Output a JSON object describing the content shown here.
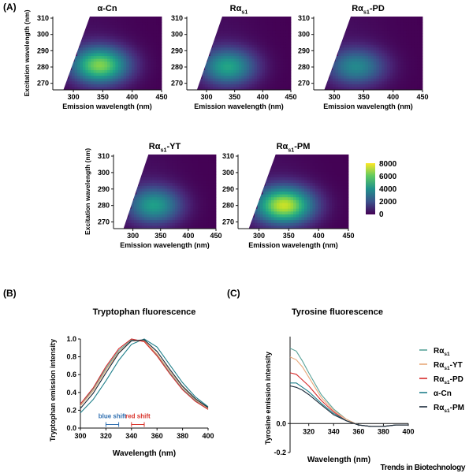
{
  "panel_labels": {
    "a": "(A)",
    "b": "(B)",
    "c": "(C)"
  },
  "heatmaps": [
    {
      "title": "α-Cn",
      "title_base": "α-Cn",
      "title_sub": "",
      "title_suffix": "",
      "peak": [
        345,
        280
      ],
      "peak_value": 6400,
      "show_ylabel": true
    },
    {
      "title": "Rαs1",
      "title_base": "Rα",
      "title_sub": "s1",
      "title_suffix": "",
      "peak": [
        338,
        279
      ],
      "peak_value": 4600,
      "show_ylabel": false
    },
    {
      "title": "Rαs1-PD",
      "title_base": "Rα",
      "title_sub": "s1",
      "title_suffix": "-PD",
      "peak": [
        337,
        279
      ],
      "peak_value": 3700,
      "show_ylabel": false
    },
    {
      "title": "Rαs1-YT",
      "title_base": "Rα",
      "title_sub": "s1",
      "title_suffix": "-YT",
      "peak": [
        338,
        279
      ],
      "peak_value": 4400,
      "show_ylabel": true
    },
    {
      "title": "Rαs1-PM",
      "title_base": "Rα",
      "title_sub": "s1",
      "title_suffix": "-PM",
      "peak": [
        342,
        279
      ],
      "peak_value": 7300,
      "show_ylabel": false
    }
  ],
  "heatmap_axes": {
    "xlabel": "Emission wavelength (nm)",
    "ylabel": "Excitation wavelength (nm)",
    "xticks": [
      "300",
      "350",
      "400",
      "450"
    ],
    "yticks": [
      "270",
      "280",
      "290",
      "300",
      "310"
    ],
    "xlim": [
      265,
      450
    ],
    "ylim": [
      265,
      310
    ]
  },
  "colorbar": {
    "ticks": [
      "8000",
      "6000",
      "4000",
      "2000",
      "0"
    ],
    "range": [
      0,
      8000
    ]
  },
  "colors": {
    "alpha_cn": "#1f7f8a",
    "ras1": "#5aa39a",
    "ras1_yt": "#e8a87a",
    "ras1_pd": "#d62a2a",
    "ras1_pm": "#1a2a3a",
    "blue_shift": "#2f6fb0",
    "red_shift": "#d9342b"
  },
  "chart_data": [
    {
      "type": "heatmap",
      "title": "α-Cn / Rαs1 / Rαs1-PD / Rαs1-YT / Rαs1-PM",
      "xlabel": "Emission wavelength (nm)",
      "ylabel": "Excitation wavelength (nm)",
      "xlim": [
        265,
        450
      ],
      "ylim": [
        265,
        310
      ],
      "color_range": [
        0,
        8000
      ],
      "peaks": [
        {
          "name": "α-Cn",
          "emission": 345,
          "excitation": 280,
          "intensity": 6400
        },
        {
          "name": "Rαs1",
          "emission": 338,
          "excitation": 279,
          "intensity": 4600
        },
        {
          "name": "Rαs1-PD",
          "emission": 337,
          "excitation": 279,
          "intensity": 3700
        },
        {
          "name": "Rαs1-YT",
          "emission": 338,
          "excitation": 279,
          "intensity": 4400
        },
        {
          "name": "Rαs1-PM",
          "emission": 342,
          "excitation": 279,
          "intensity": 7300
        }
      ]
    },
    {
      "type": "line",
      "title": "Tryptophan fluorescence",
      "xlabel": "Wavelength (nm)",
      "ylabel": "Tryptophan emission intensity",
      "xlim": [
        300,
        400
      ],
      "ylim": [
        0,
        1.0
      ],
      "xticks": [
        "300",
        "320",
        "340",
        "360",
        "380",
        "400"
      ],
      "yticks": [
        "0.0",
        "0.2",
        "0.4",
        "0.6",
        "0.8",
        "1.0"
      ],
      "series": [
        {
          "key": "alpha_cn",
          "x": [
            300,
            310,
            320,
            330,
            340,
            350,
            360,
            370,
            380,
            390,
            400
          ],
          "y": [
            0.17,
            0.32,
            0.53,
            0.76,
            0.94,
            1.0,
            0.91,
            0.71,
            0.51,
            0.35,
            0.24
          ]
        },
        {
          "key": "ras1",
          "x": [
            300,
            310,
            320,
            330,
            340,
            350,
            360,
            370,
            380,
            390,
            400
          ],
          "y": [
            0.25,
            0.44,
            0.67,
            0.87,
            0.99,
            0.98,
            0.82,
            0.62,
            0.44,
            0.31,
            0.21
          ]
        },
        {
          "key": "ras1_yt",
          "x": [
            300,
            310,
            320,
            330,
            340,
            350,
            360,
            370,
            380,
            390,
            400
          ],
          "y": [
            0.25,
            0.42,
            0.65,
            0.85,
            0.98,
            0.98,
            0.83,
            0.64,
            0.46,
            0.32,
            0.22
          ]
        },
        {
          "key": "ras1_pd",
          "x": [
            300,
            310,
            320,
            330,
            340,
            350,
            360,
            370,
            380,
            390,
            400
          ],
          "y": [
            0.27,
            0.45,
            0.69,
            0.89,
            1.0,
            0.97,
            0.81,
            0.61,
            0.43,
            0.3,
            0.21
          ]
        },
        {
          "key": "ras1_pm",
          "x": [
            300,
            310,
            320,
            330,
            340,
            350,
            360,
            370,
            380,
            390,
            400
          ],
          "y": [
            0.22,
            0.39,
            0.62,
            0.84,
            0.98,
            0.99,
            0.86,
            0.66,
            0.47,
            0.33,
            0.23
          ]
        }
      ],
      "annotations": [
        {
          "text": "blue shift",
          "x_start": 320,
          "x_end": 330,
          "y": 0.04,
          "color": "blue_shift"
        },
        {
          "text": "red shift",
          "x_start": 340,
          "x_end": 350,
          "y": 0.04,
          "color": "red_shift"
        }
      ]
    },
    {
      "type": "line",
      "title": "Tyrosine fluorescence",
      "xlabel": "Wavelength (nm)",
      "ylabel": "Tyrosine emission intensity",
      "xlim": [
        305,
        400
      ],
      "ylim": [
        -0.2,
        0.6
      ],
      "xticks": [
        "320",
        "340",
        "360",
        "380",
        "400"
      ],
      "yticks": [
        "0.0",
        "-0.2"
      ],
      "legend_position": "top-right",
      "series": [
        {
          "name": "Rαs1",
          "name_base": "Rα",
          "name_sub": "s1",
          "name_suffix": "",
          "key": "ras1",
          "x": [
            305,
            310,
            315,
            320,
            330,
            340,
            350,
            360,
            370,
            380,
            390,
            400
          ],
          "y": [
            0.52,
            0.5,
            0.43,
            0.35,
            0.2,
            0.1,
            0.03,
            -0.01,
            -0.02,
            -0.02,
            -0.01,
            -0.01
          ]
        },
        {
          "name": "Rαs1-YT",
          "name_base": "Rα",
          "name_sub": "s1",
          "name_suffix": "-YT",
          "key": "ras1_yt",
          "x": [
            305,
            310,
            315,
            320,
            330,
            340,
            350,
            360,
            370,
            380,
            390,
            400
          ],
          "y": [
            0.46,
            0.44,
            0.39,
            0.32,
            0.18,
            0.09,
            0.03,
            -0.01,
            -0.02,
            -0.02,
            -0.01,
            -0.01
          ]
        },
        {
          "name": "Rαs1-PD",
          "name_base": "Rα",
          "name_sub": "s1",
          "name_suffix": "-PD",
          "key": "ras1_pd",
          "x": [
            305,
            310,
            315,
            320,
            330,
            340,
            350,
            360,
            370,
            380,
            390,
            400
          ],
          "y": [
            0.35,
            0.34,
            0.3,
            0.26,
            0.16,
            0.08,
            0.02,
            -0.01,
            -0.02,
            -0.02,
            -0.01,
            -0.01
          ]
        },
        {
          "name": "α-Cn",
          "name_base": "α-Cn",
          "name_sub": "",
          "name_suffix": "",
          "key": "alpha_cn",
          "x": [
            305,
            310,
            315,
            320,
            330,
            340,
            350,
            360,
            370,
            380,
            390,
            400
          ],
          "y": [
            0.28,
            0.28,
            0.25,
            0.22,
            0.14,
            0.07,
            0.02,
            -0.01,
            -0.02,
            -0.02,
            -0.01,
            -0.01
          ]
        },
        {
          "name": "Rαs1-PM",
          "name_base": "Rα",
          "name_sub": "s1",
          "name_suffix": "-PM",
          "key": "ras1_pm",
          "x": [
            305,
            310,
            315,
            320,
            330,
            340,
            350,
            360,
            370,
            380,
            390,
            400
          ],
          "y": [
            0.26,
            0.25,
            0.23,
            0.2,
            0.13,
            0.06,
            0.02,
            -0.01,
            -0.02,
            -0.02,
            -0.01,
            -0.01
          ]
        }
      ]
    }
  ],
  "footer": {
    "brand": "Trends in Biotechnology"
  }
}
